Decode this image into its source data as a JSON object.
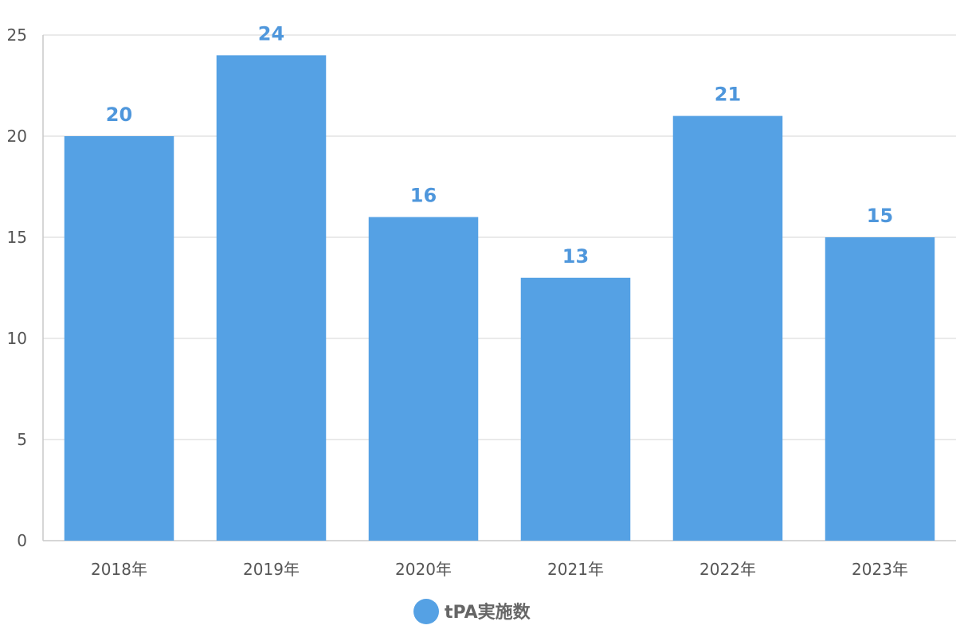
{
  "chart_data": {
    "type": "bar",
    "categories": [
      "2018年",
      "2019年",
      "2020年",
      "2021年",
      "2022年",
      "2023年"
    ],
    "series": [
      {
        "name": "tPA実施数",
        "values": [
          20,
          24,
          16,
          13,
          21,
          15
        ],
        "color": "#55a1e4"
      }
    ],
    "ylim": [
      0,
      25
    ],
    "yticks": [
      0,
      5,
      10,
      15,
      20,
      25
    ],
    "grid": true,
    "data_labels": true,
    "legend_position": "bottom-center",
    "colors": {
      "bar": "#55a1e4",
      "data_label": "#4f97dc",
      "grid": "#e3e3e3",
      "axis": "#c9c9c9",
      "tick_text": "#555555",
      "legend_text": "#666666"
    }
  }
}
